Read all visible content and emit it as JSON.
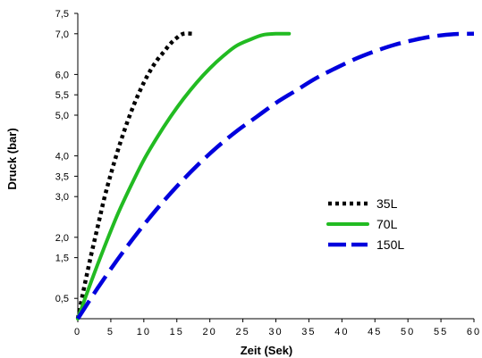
{
  "chart_data": {
    "type": "line",
    "xlabel": "Zeit (Sek)",
    "ylabel": "Druck (bar)",
    "xlim": [
      0,
      60
    ],
    "ylim": [
      0,
      7.5
    ],
    "x_ticks": [
      {
        "value": 0,
        "label": "0"
      },
      {
        "value": 5,
        "label": "5"
      },
      {
        "value": 10,
        "label": "10"
      },
      {
        "value": 15,
        "label": "15"
      },
      {
        "value": 20,
        "label": "20"
      },
      {
        "value": 25,
        "label": "25"
      },
      {
        "value": 30,
        "label": "30"
      },
      {
        "value": 35,
        "label": "35"
      },
      {
        "value": 40,
        "label": "40"
      },
      {
        "value": 45,
        "label": "45"
      },
      {
        "value": 50,
        "label": "50"
      },
      {
        "value": 55,
        "label": "55"
      },
      {
        "value": 60,
        "label": "60"
      }
    ],
    "y_ticks": [
      {
        "value": 0.5,
        "label": "0,5"
      },
      {
        "value": 1.5,
        "label": "1,5"
      },
      {
        "value": 2.0,
        "label": "2,0"
      },
      {
        "value": 3.0,
        "label": "3,0"
      },
      {
        "value": 3.5,
        "label": "3,5"
      },
      {
        "value": 4.0,
        "label": "4,0"
      },
      {
        "value": 5.0,
        "label": "5,0"
      },
      {
        "value": 5.5,
        "label": "5,5"
      },
      {
        "value": 6.0,
        "label": "6,0"
      },
      {
        "value": 7.0,
        "label": "7,0"
      },
      {
        "value": 7.5,
        "label": "7,5"
      }
    ],
    "grid": false,
    "legend_position": "right",
    "series": [
      {
        "name": "35L",
        "color": "#000000",
        "style": "dotted",
        "x": [
          0,
          1,
          2,
          3,
          4,
          5,
          6,
          7,
          8,
          9,
          10,
          11,
          12,
          13,
          14,
          15,
          16,
          17.5
        ],
        "y": [
          0,
          0.8,
          1.55,
          2.25,
          2.95,
          3.55,
          4.1,
          4.6,
          5.05,
          5.45,
          5.8,
          6.1,
          6.35,
          6.55,
          6.75,
          6.9,
          7.0,
          7.0
        ]
      },
      {
        "name": "70L",
        "color": "#22bb22",
        "style": "solid",
        "x": [
          0,
          2,
          4,
          6,
          8,
          10,
          12,
          14,
          16,
          18,
          20,
          22,
          24,
          26,
          28,
          30,
          32
        ],
        "y": [
          0,
          0.9,
          1.75,
          2.55,
          3.25,
          3.9,
          4.45,
          4.95,
          5.4,
          5.8,
          6.15,
          6.45,
          6.7,
          6.85,
          6.97,
          7.0,
          7.0
        ]
      },
      {
        "name": "150L",
        "color": "#0000dd",
        "style": "dashed",
        "x": [
          0,
          3,
          6,
          9,
          12,
          15,
          18,
          21,
          24,
          27,
          30,
          33,
          36,
          39,
          42,
          45,
          48,
          51,
          54,
          57,
          60
        ],
        "y": [
          0,
          0.75,
          1.45,
          2.1,
          2.7,
          3.25,
          3.75,
          4.2,
          4.6,
          4.95,
          5.3,
          5.6,
          5.9,
          6.15,
          6.38,
          6.57,
          6.73,
          6.85,
          6.94,
          6.99,
          7.0
        ]
      }
    ]
  }
}
